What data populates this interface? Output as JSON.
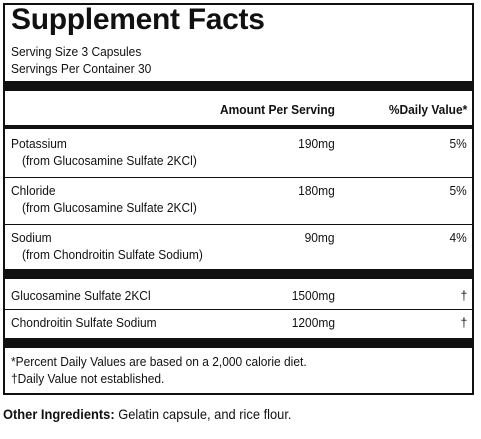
{
  "panel": {
    "title": "Supplement Facts",
    "serving_size": "Serving Size 3 Capsules",
    "servings_per_container": "Servings Per Container 30",
    "header": {
      "amount": "Amount Per Serving",
      "daily_value": "%Daily Value*"
    },
    "group1": [
      {
        "name": "Potassium",
        "source": "(from Glucosamine Sulfate 2KCl)",
        "amount": "190mg",
        "dv": "5%"
      },
      {
        "name": "Chloride",
        "source": "(from Glucosamine Sulfate 2KCl)",
        "amount": "180mg",
        "dv": "5%"
      },
      {
        "name": "Sodium",
        "source": "(from Chondroitin Sulfate Sodium)",
        "amount": "90mg",
        "dv": "4%"
      }
    ],
    "group2": [
      {
        "name": "Glucosamine Sulfate 2KCl",
        "amount": "1500mg",
        "dv": "†"
      },
      {
        "name": "Chondroitin Sulfate Sodium",
        "amount": "1200mg",
        "dv": "†"
      }
    ],
    "footnote1": "*Percent Daily Values are based on a 2,000 calorie diet.",
    "footnote2": "†Daily Value not established."
  },
  "other_ingredients": {
    "label": "Other Ingredients:",
    "text": " Gelatin capsule, and rice flour."
  }
}
